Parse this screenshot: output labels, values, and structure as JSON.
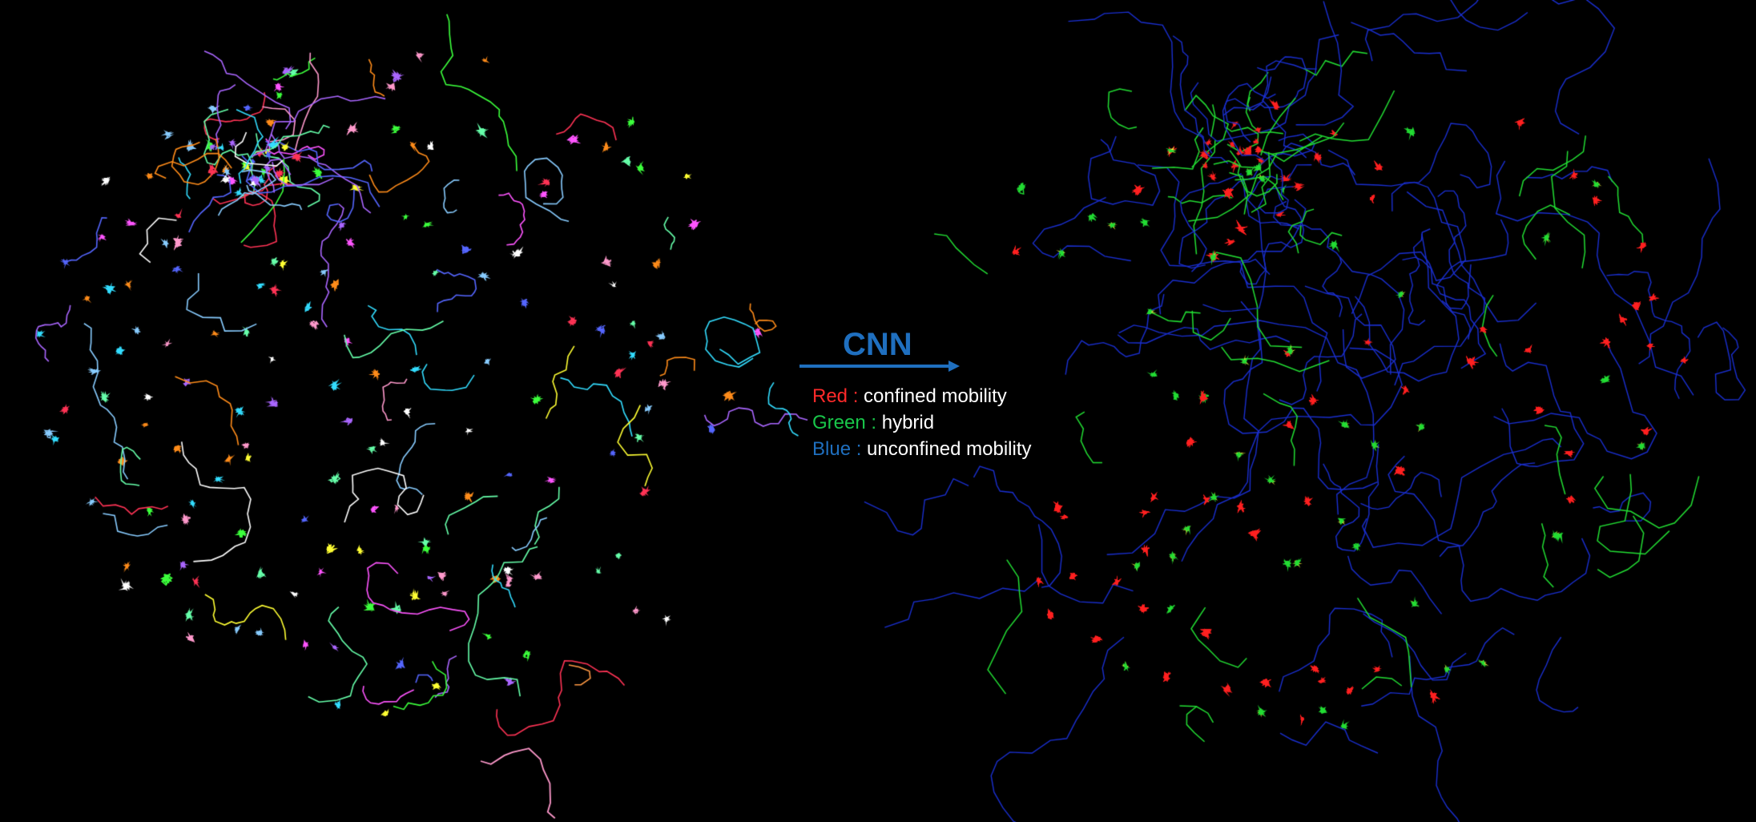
{
  "header": {
    "method_label": "CNN"
  },
  "legend": {
    "items": [
      {
        "key": "Red :",
        "description": "confined mobility",
        "color": "#ff2a2a"
      },
      {
        "key": "Green :",
        "description": "hybrid",
        "color": "#19c64a"
      },
      {
        "key": "Blue :",
        "description": "unconfined mobility",
        "color": "#1f6fbf"
      }
    ]
  },
  "palette": {
    "background": "#000000",
    "arrow": "#1f6fbf",
    "raw_tracks": [
      "#ff8c1a",
      "#3cff3c",
      "#ff55ff",
      "#33ddff",
      "#ffff33",
      "#5566ff",
      "#ff3355",
      "#ffffff",
      "#aa66ff",
      "#66ffaa",
      "#ff99cc",
      "#88ccff"
    ],
    "classified": {
      "confined": "#ff2020",
      "hybrid": "#22dd33",
      "unconfined": "#1a2fd0",
      "highlight": "#ffff40"
    }
  }
}
